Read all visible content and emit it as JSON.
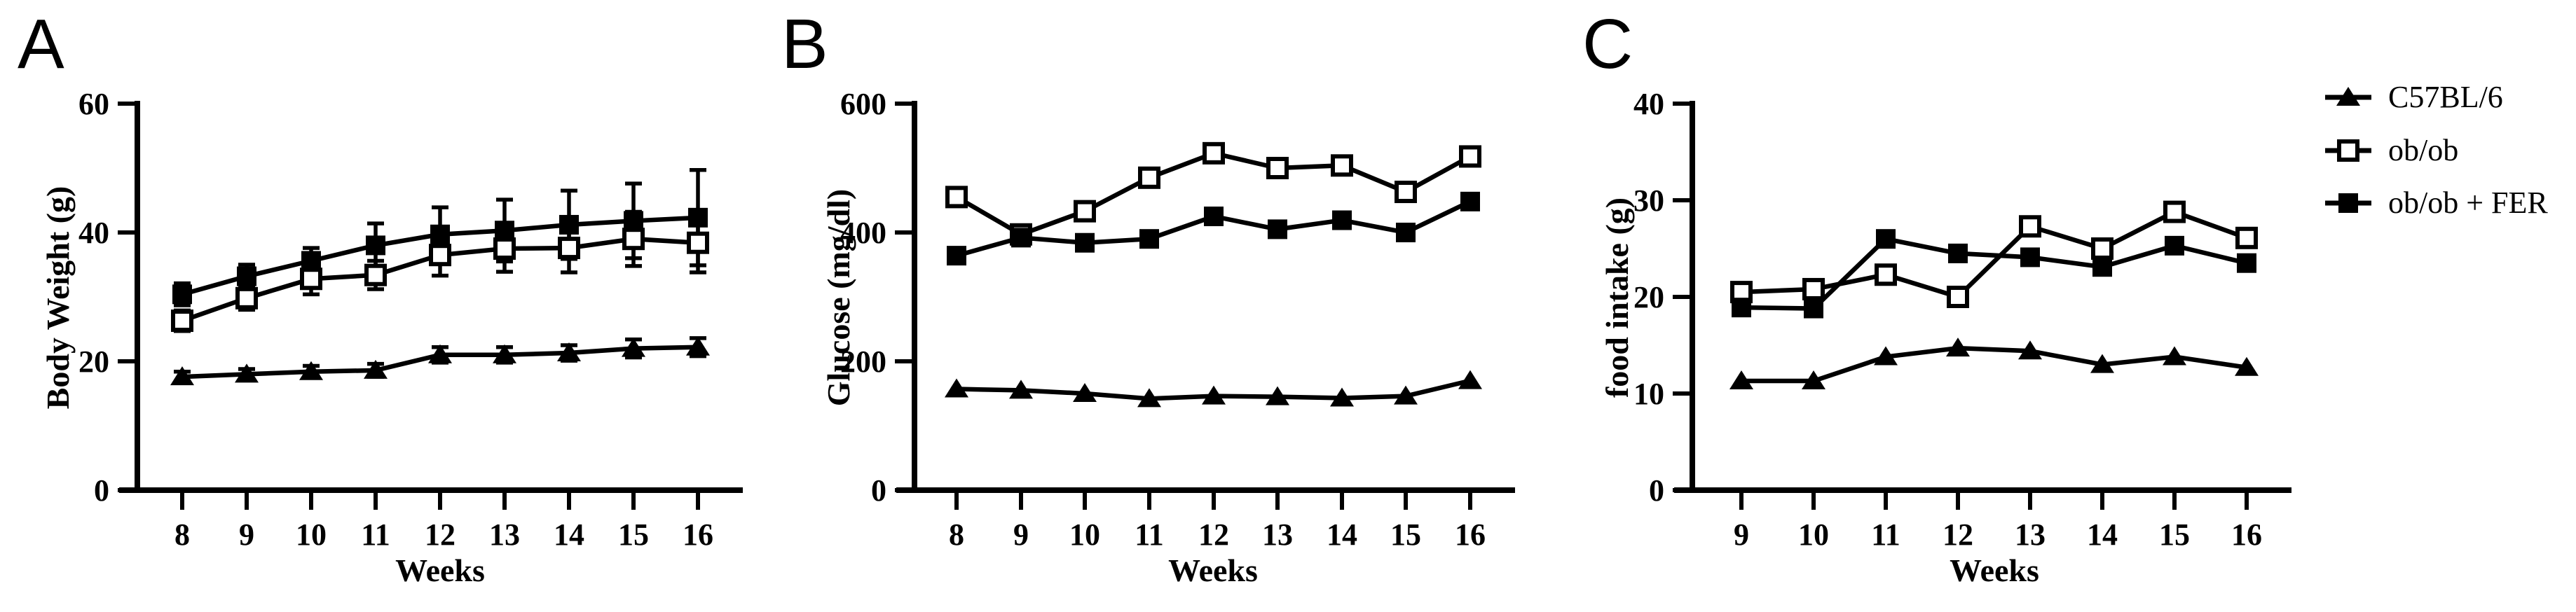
{
  "colors": {
    "ink": "#000000",
    "background": "#ffffff"
  },
  "chart_data": [
    {
      "panel": "A",
      "type": "line",
      "title": "",
      "xlabel": "Weeks",
      "ylabel": "Body Weight (g)",
      "x": [
        8,
        9,
        10,
        11,
        12,
        13,
        14,
        15,
        16
      ],
      "ylim": [
        0,
        60
      ],
      "yticks": [
        0,
        20,
        40,
        60
      ],
      "grid": false,
      "error_bars": true,
      "series": [
        {
          "name": "C57BL/6",
          "marker": "triangle-filled",
          "values": [
            17.6,
            18.0,
            18.4,
            18.6,
            21.0,
            21.0,
            21.3,
            22.0,
            22.2
          ],
          "errors": [
            0.8,
            0.8,
            0.9,
            1.0,
            1.2,
            1.2,
            1.2,
            1.4,
            1.4
          ]
        },
        {
          "name": "ob/ob",
          "marker": "square-open",
          "values": [
            26.3,
            29.8,
            32.8,
            33.4,
            36.5,
            37.5,
            37.6,
            39.0,
            38.4
          ],
          "errors": [
            1.6,
            1.8,
            2.4,
            2.2,
            3.2,
            3.6,
            3.8,
            4.2,
            4.6
          ]
        },
        {
          "name": "ob/ob + FER",
          "marker": "square-filled",
          "values": [
            30.4,
            33.2,
            35.6,
            38.0,
            39.7,
            40.3,
            41.2,
            41.8,
            42.3
          ],
          "errors": [
            1.7,
            1.8,
            2.0,
            3.4,
            4.2,
            4.8,
            5.3,
            5.8,
            7.4
          ]
        }
      ]
    },
    {
      "panel": "B",
      "type": "line",
      "title": "",
      "xlabel": "Weeks",
      "ylabel": "Glucose (mg/dl)",
      "x": [
        8,
        9,
        10,
        11,
        12,
        13,
        14,
        15,
        16
      ],
      "ylim": [
        0,
        600
      ],
      "yticks": [
        0,
        200,
        400,
        600
      ],
      "grid": false,
      "error_bars": false,
      "series": [
        {
          "name": "C57BL/6",
          "marker": "triangle-filled",
          "values": [
            157,
            155,
            150,
            142,
            146,
            145,
            143,
            146,
            170
          ]
        },
        {
          "name": "ob/ob",
          "marker": "square-open",
          "values": [
            455,
            397,
            433,
            485,
            523,
            500,
            504,
            463,
            518
          ]
        },
        {
          "name": "ob/ob + FER",
          "marker": "square-filled",
          "values": [
            364,
            392,
            384,
            390,
            425,
            405,
            419,
            400,
            448
          ]
        }
      ]
    },
    {
      "panel": "C",
      "type": "line",
      "title": "",
      "xlabel": "Weeks",
      "ylabel": "food intake (g)",
      "x": [
        9,
        10,
        11,
        12,
        13,
        14,
        15,
        16
      ],
      "ylim": [
        0,
        40
      ],
      "yticks": [
        0,
        10,
        20,
        30,
        40
      ],
      "grid": false,
      "error_bars": false,
      "series": [
        {
          "name": "C57BL/6",
          "marker": "triangle-filled",
          "values": [
            11.3,
            11.3,
            13.8,
            14.7,
            14.4,
            13.0,
            13.8,
            12.7
          ]
        },
        {
          "name": "ob/ob",
          "marker": "square-open",
          "values": [
            20.5,
            20.8,
            22.3,
            20.0,
            27.3,
            25.0,
            28.8,
            26.1
          ]
        },
        {
          "name": "ob/ob + FER",
          "marker": "square-filled",
          "values": [
            18.9,
            18.8,
            26.0,
            24.5,
            24.1,
            23.1,
            25.3,
            23.5
          ]
        }
      ]
    }
  ],
  "legend": {
    "position": "right",
    "items": [
      {
        "label": "C57BL/6",
        "marker": "triangle-filled"
      },
      {
        "label": "ob/ob",
        "marker": "square-open"
      },
      {
        "label": "ob/ob + FER",
        "marker": "square-filled"
      }
    ]
  }
}
